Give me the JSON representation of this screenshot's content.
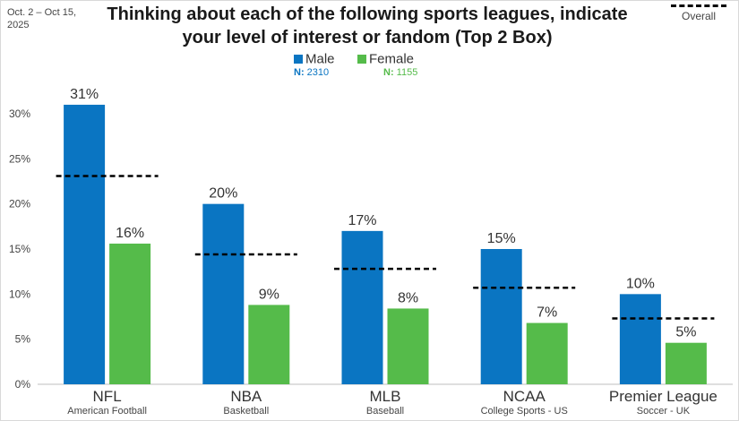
{
  "date_note": "Oct. 2 – Oct 15, 2025",
  "title": "Thinking about each of the following sports leagues, indicate your level of interest or fandom (Top 2 Box)",
  "overall_label": "Overall",
  "legend": [
    {
      "name": "Male",
      "n_label": "N:",
      "n_value": "2310",
      "color": "#0a75c2"
    },
    {
      "name": "Female",
      "n_label": "N:",
      "n_value": "1155",
      "color": "#55bb4a"
    }
  ],
  "chart_data": {
    "type": "bar",
    "title": "Thinking about each of the following sports leagues, indicate your level of interest or fandom (Top 2 Box)",
    "categories": [
      "NFL",
      "NBA",
      "MLB",
      "NCAA",
      "Premier League"
    ],
    "subcategories": [
      "American Football",
      "Basketball",
      "Baseball",
      "College Sports - US",
      "Soccer - UK"
    ],
    "series": [
      {
        "name": "Male",
        "values": [
          31,
          20,
          17,
          15,
          10
        ],
        "labels": [
          "31%",
          "20%",
          "17%",
          "15%",
          "10%"
        ],
        "color": "#0a75c2"
      },
      {
        "name": "Female",
        "values": [
          15.6,
          8.8,
          8.4,
          6.8,
          4.6
        ],
        "labels": [
          "16%",
          "9%",
          "8%",
          "7%",
          "5%"
        ],
        "color": "#55bb4a"
      }
    ],
    "overall": {
      "name": "Overall",
      "values": [
        23.1,
        14.4,
        12.8,
        10.7,
        7.3
      ]
    },
    "ylim": [
      0,
      30
    ],
    "yticks": [
      "0%",
      "5%",
      "10%",
      "15%",
      "20%",
      "25%",
      "30%"
    ],
    "grid": false,
    "legend_position": "top-center"
  }
}
